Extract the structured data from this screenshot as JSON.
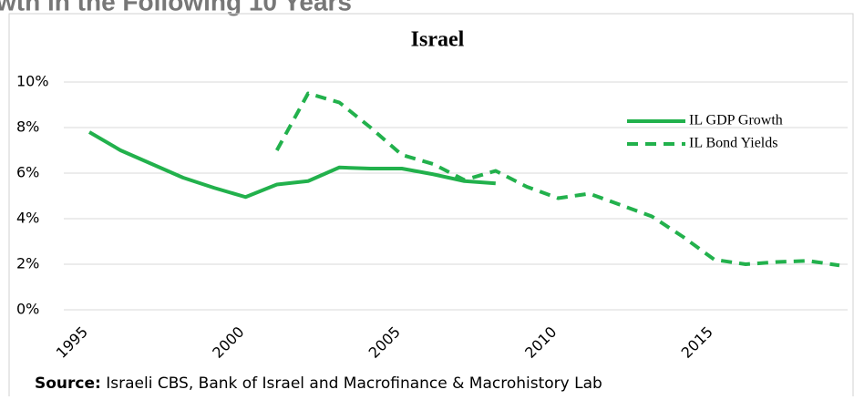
{
  "heading": "wth in the Following 10 Years",
  "chart_data": {
    "type": "line",
    "title": "Israel",
    "x": [
      1995,
      1996,
      1997,
      1998,
      1999,
      2000,
      2001,
      2002,
      2003,
      2004,
      2005,
      2006,
      2007,
      2008,
      2009,
      2010,
      2011,
      2012,
      2013,
      2014,
      2015,
      2016,
      2017,
      2018,
      2019
    ],
    "series": [
      {
        "name": "IL GDP Growth",
        "color": "#22b14c",
        "dash": false,
        "values": [
          7.8,
          7.0,
          6.4,
          5.8,
          5.35,
          4.95,
          5.5,
          5.65,
          6.25,
          6.2,
          6.2,
          5.95,
          5.65,
          5.55,
          null,
          null,
          null,
          null,
          null,
          null,
          null,
          null,
          null,
          null,
          null
        ]
      },
      {
        "name": "IL Bond Yields",
        "color": "#22b14c",
        "dash": true,
        "values": [
          null,
          null,
          null,
          null,
          null,
          null,
          7.0,
          9.5,
          9.1,
          8.0,
          6.8,
          6.4,
          5.7,
          6.1,
          5.4,
          4.9,
          5.1,
          4.6,
          4.1,
          3.2,
          2.2,
          2.0,
          2.1,
          2.15,
          1.95
        ]
      }
    ],
    "xlim": [
      1995,
      2019
    ],
    "xticks": [
      1995,
      2000,
      2005,
      2010,
      2015
    ],
    "ylim": [
      0,
      10
    ],
    "yticks": [
      {
        "value": 0,
        "label": "0%"
      },
      {
        "value": 2,
        "label": "2%"
      },
      {
        "value": 4,
        "label": "4%"
      },
      {
        "value": 6,
        "label": "6%"
      },
      {
        "value": 8,
        "label": "8%"
      },
      {
        "value": 10,
        "label": "10%"
      }
    ],
    "grid": true,
    "legend": "top-right",
    "source_label": "Source:",
    "source_text": "Israeli CBS, Bank of Israel and Macrofinance & Macrohistory Lab"
  }
}
